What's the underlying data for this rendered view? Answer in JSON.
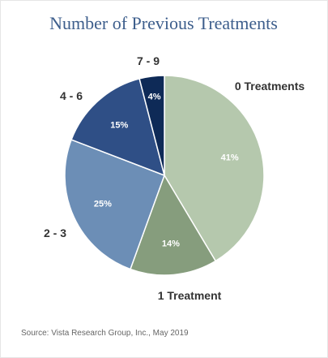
{
  "chart_data": {
    "type": "pie",
    "title": "Number of Previous Treatments",
    "categories": [
      "0 Treatments",
      "1 Treatment",
      "2 - 3",
      "4 - 6",
      "7 - 9"
    ],
    "values": [
      41,
      14,
      25,
      15,
      4
    ],
    "value_labels": [
      "41%",
      "14%",
      "25%",
      "15%",
      "4%"
    ],
    "colors": [
      "#b5c8ad",
      "#869d7d",
      "#6c8eb6",
      "#2f4f86",
      "#0e2a57"
    ],
    "source": "Source: Vista Research Group, Inc., May 2019"
  }
}
